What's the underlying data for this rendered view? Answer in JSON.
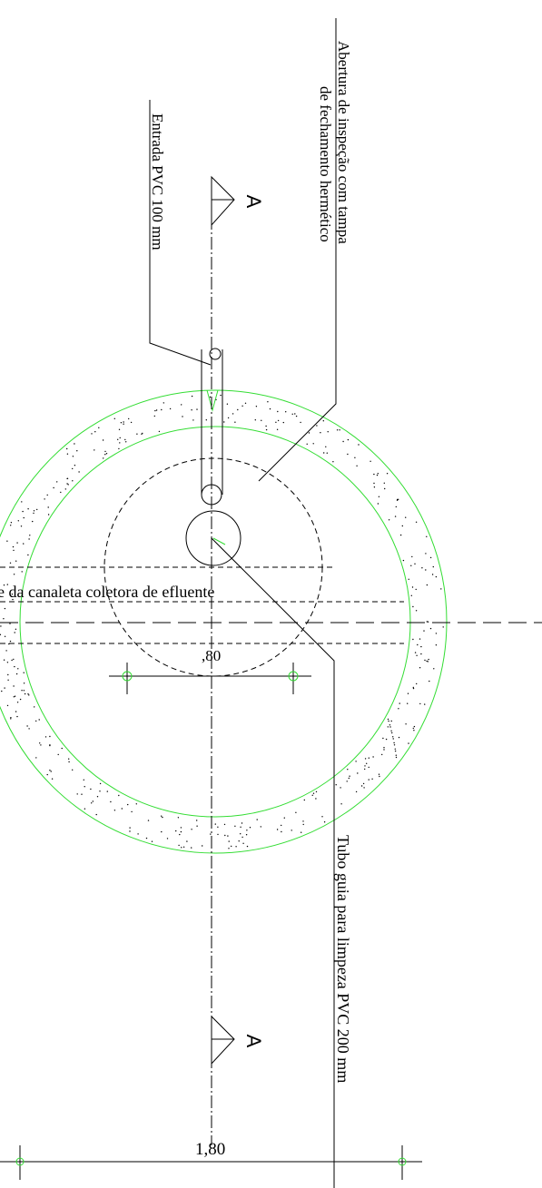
{
  "labels": {
    "inspection": [
      "Abertura de inspeção com tampa",
      "de fechamento hermético"
    ],
    "inlet": "Entrada PVC 100 mm",
    "section_top": "A",
    "section_bottom": "A",
    "channel": "e da canaleta coletora de efluente",
    "inner_dimension": ",80",
    "outer_dimension": "1,80",
    "guide_tube": "Tubo guia para limpeza PVC 200 mm"
  }
}
